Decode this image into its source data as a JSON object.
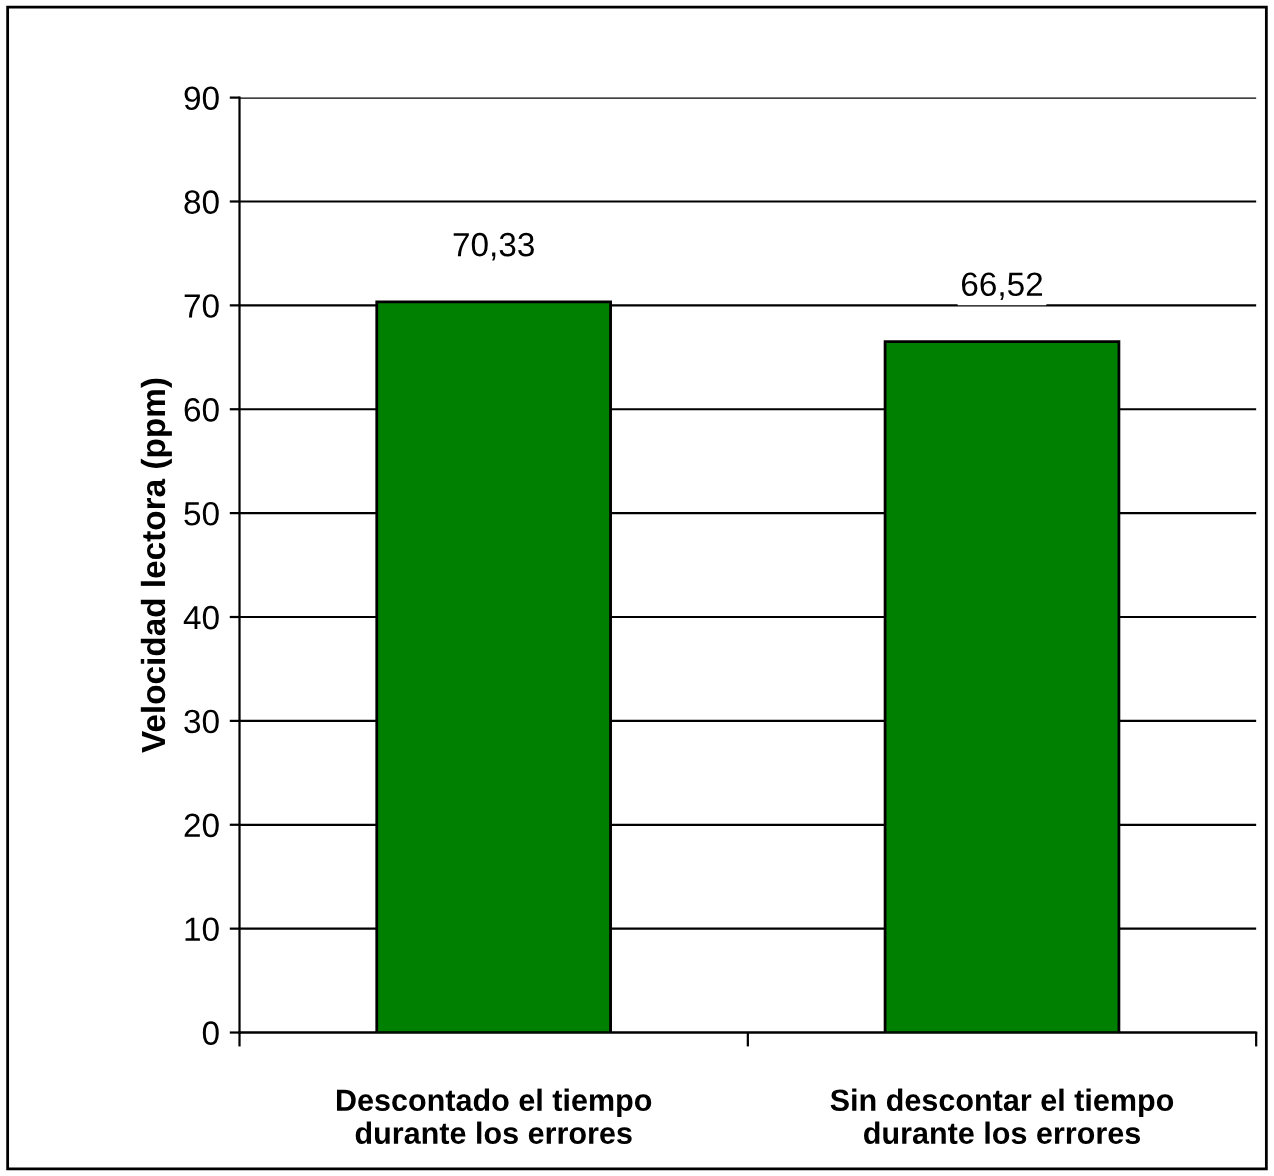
{
  "chart_data": {
    "type": "bar",
    "ylabel": "Velocidad lectora (ppm)",
    "categories": [
      "Descontado el tiempo\ndurante los errores",
      "Sin descontar el tiempo\ndurante los errores"
    ],
    "values": [
      70.33,
      66.52
    ],
    "color": "#008000",
    "value_labels": [
      "70,33",
      "66,52"
    ],
    "ylim": [
      0,
      90
    ],
    "yticks": [
      0,
      10,
      20,
      30,
      40,
      50,
      60,
      70,
      80,
      90
    ],
    "grid": "y",
    "legend": false
  }
}
